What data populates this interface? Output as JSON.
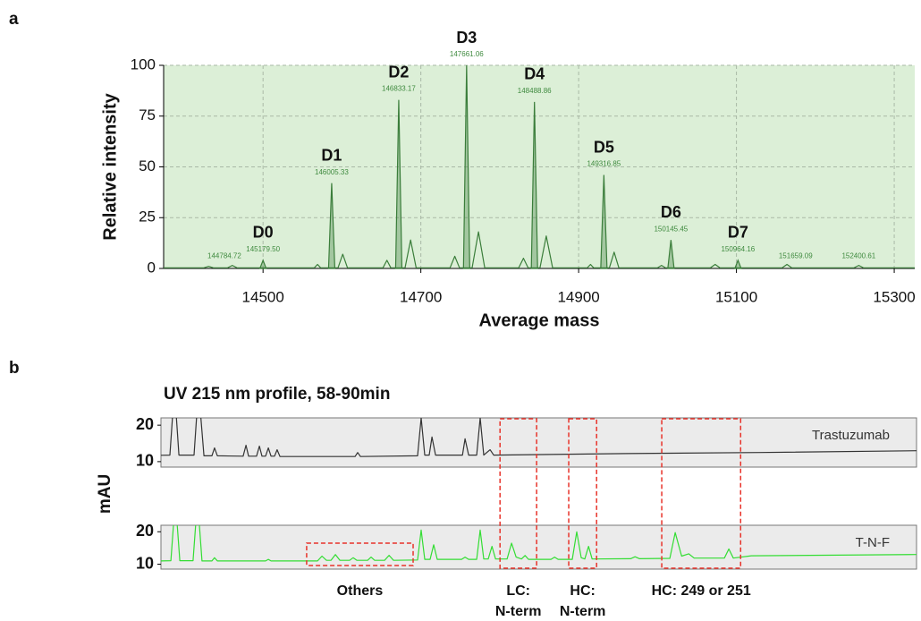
{
  "panel_labels": [
    "a",
    "b"
  ],
  "chart_data": [
    {
      "type": "line",
      "xlabel": "Average mass",
      "ylabel": "Relative intensity",
      "xlim": [
        14374,
        15326
      ],
      "xticks": [
        14500,
        14700,
        14900,
        15100,
        15300
      ],
      "ylim": [
        0,
        100
      ],
      "yticks": [
        0,
        25,
        50,
        75,
        100
      ],
      "grid": true,
      "background": "#dcefd7",
      "series": [
        {
          "color": "#3a7d3a",
          "x": [
            14374,
            14425,
            14431,
            14437,
            14455,
            14461,
            14467,
            14565,
            14569,
            14573,
            14595,
            14601,
            14607,
            14652,
            14657,
            14662,
            14680,
            14687,
            14694,
            14737,
            14743,
            14749,
            14765,
            14773,
            14781,
            14824,
            14830,
            14836,
            14851,
            14859,
            14867,
            14911,
            14915,
            14919,
            14939,
            14945,
            14951,
            15000,
            15005,
            15010,
            15067,
            15073,
            15079,
            15158,
            15164,
            15170,
            15249,
            15255,
            15261,
            15326
          ],
          "values": [
            0.3,
            0.3,
            1,
            0.3,
            0.3,
            1.5,
            0.3,
            0.3,
            2,
            0.3,
            0.3,
            7,
            0.3,
            0.3,
            4,
            0.3,
            0.3,
            14,
            0.3,
            0.3,
            6,
            0.3,
            0.3,
            18,
            0.3,
            0.3,
            5,
            0.3,
            0.3,
            16,
            0.3,
            0.3,
            2,
            0.3,
            0.3,
            8,
            0.3,
            0.3,
            1.5,
            0.3,
            0.3,
            2,
            0.3,
            0.3,
            2,
            0.3,
            0.3,
            1.5,
            0.3,
            0.3
          ]
        }
      ],
      "peaks": {
        "names": [
          "D0",
          "D1",
          "D2",
          "D3",
          "D4",
          "D5",
          "D6",
          "D7"
        ],
        "mass_labels": [
          "145179.50",
          "146005.33",
          "146833.17",
          "147661.06",
          "148488.86",
          "149316.85",
          "150145.45",
          "150964.16"
        ],
        "x": [
          14500,
          14587,
          14672,
          14758,
          14844,
          14932,
          15017,
          15102
        ],
        "values": [
          4,
          42,
          83,
          100,
          82,
          46,
          14,
          4
        ]
      },
      "annotations": [
        {
          "text": "144784.72",
          "x": 14451,
          "y": 6
        },
        {
          "text": "151659.09",
          "x": 15175,
          "y": 6
        },
        {
          "text": "152400.61",
          "x": 15255,
          "y": 6
        }
      ]
    },
    {
      "type": "line",
      "title": "UV 215 nm profile, 58-90min",
      "ylabel": "mAU",
      "xlim": [
        58,
        90
      ],
      "ylim": [
        8.5,
        22
      ],
      "yticks": [
        10,
        20
      ],
      "background": "#ebebeb",
      "series": [
        {
          "name": "Trastuzumab",
          "color": "#333333",
          "x": [
            58.0,
            58.38,
            58.57,
            58.76,
            59.4,
            59.59,
            59.82,
            60.16,
            60.27,
            60.39,
            61.48,
            61.6,
            61.71,
            62.05,
            62.17,
            62.28,
            62.43,
            62.55,
            62.66,
            62.81,
            62.92,
            63.04,
            66.22,
            66.33,
            66.45,
            68.87,
            69.02,
            69.17,
            69.36,
            69.48,
            69.63,
            70.77,
            70.88,
            71.03,
            71.37,
            71.52,
            71.67,
            71.94,
            72.09,
            77.7,
            83.38,
            90.0
          ],
          "values": [
            11.75,
            11.8,
            30,
            11.8,
            11.8,
            30,
            11.6,
            11.6,
            13.75,
            11.6,
            11.5,
            14.5,
            11.5,
            11.5,
            14.25,
            11.5,
            11.5,
            13.75,
            11.5,
            11.5,
            13.25,
            11.4,
            11.4,
            12.5,
            11.4,
            11.6,
            22,
            11.8,
            11.8,
            16.75,
            11.8,
            11.8,
            16.25,
            11.8,
            11.8,
            22,
            11.8,
            13.25,
            11.8,
            12.2,
            12.5,
            13
          ]
        },
        {
          "name": "T-N-F",
          "color": "#33dd33",
          "x": [
            58.0,
            58.42,
            58.61,
            58.8,
            59.36,
            59.55,
            59.74,
            60.16,
            60.27,
            60.39,
            62.43,
            62.55,
            62.66,
            64.63,
            64.82,
            65.01,
            65.2,
            65.39,
            65.58,
            65.99,
            66.14,
            66.3,
            66.75,
            66.9,
            67.05,
            67.47,
            67.66,
            67.85,
            68.87,
            69.02,
            69.17,
            69.4,
            69.55,
            69.7,
            70.73,
            70.88,
            71.03,
            71.37,
            71.52,
            71.67,
            71.86,
            72.02,
            72.17,
            72.66,
            72.85,
            73.04,
            73.27,
            73.42,
            73.57,
            74.52,
            74.67,
            74.82,
            75.42,
            75.61,
            75.8,
            75.95,
            76.11,
            76.26,
            77.89,
            78.08,
            78.27,
            79.55,
            79.78,
            80.05,
            80.35,
            80.58,
            81.86,
            82.05,
            82.24,
            83.0,
            90.0
          ],
          "values": [
            11,
            11.1,
            30,
            11.1,
            11.1,
            30,
            11,
            11,
            12,
            11,
            11,
            11.5,
            11,
            11,
            12.5,
            11.2,
            11.2,
            13,
            11.2,
            11.2,
            12,
            11.2,
            11.2,
            12.2,
            11.2,
            11.2,
            12.75,
            11.2,
            11.3,
            20.5,
            11.5,
            11.5,
            16,
            11.5,
            11.5,
            12.2,
            11.5,
            11.5,
            20.5,
            11.6,
            11.6,
            15.5,
            11.6,
            11.6,
            16.5,
            12.2,
            11.6,
            12.7,
            11.5,
            11.5,
            12.2,
            11.5,
            11.5,
            20,
            12,
            11.6,
            15.5,
            11.6,
            11.7,
            12.3,
            11.7,
            11.8,
            19.75,
            12.5,
            13.2,
            11.9,
            11.9,
            14.7,
            11.9,
            12.6,
            13
          ]
        }
      ],
      "regions": [
        {
          "label": [
            "Others"
          ],
          "x": [
            64.17,
            68.68
          ],
          "series": [
            "T-N-F"
          ]
        },
        {
          "label": [
            "LC:",
            "N-term"
          ],
          "x": [
            72.36,
            73.91
          ],
          "series": [
            "Trastuzumab",
            "T-N-F"
          ]
        },
        {
          "label": [
            "HC:",
            "N-term"
          ],
          "x": [
            75.27,
            76.45
          ],
          "series": [
            "Trastuzumab",
            "T-N-F"
          ]
        },
        {
          "label": [
            "HC: 249 or 251"
          ],
          "x": [
            79.21,
            82.55
          ],
          "series": [
            "Trastuzumab",
            "T-N-F"
          ]
        }
      ]
    }
  ]
}
